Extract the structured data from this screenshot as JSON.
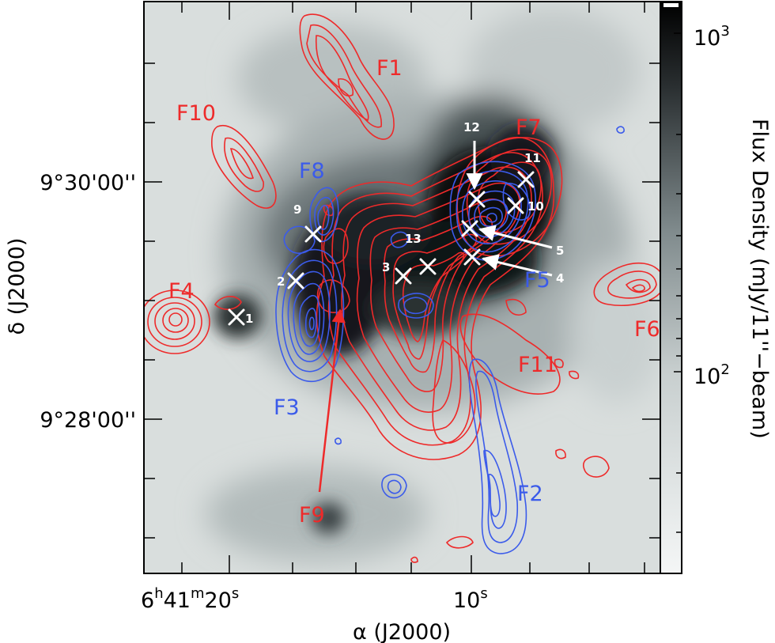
{
  "chart_data": {
    "type": "heatmap",
    "xlabel": "α (J2000)",
    "ylabel": "δ (J2000)",
    "x_ticks": [
      {
        "h": "6",
        "m": "41",
        "s": "20",
        "unit_s": "s"
      },
      {
        "value": "10",
        "unit_s": "s"
      }
    ],
    "y_ticks": [
      "9°30'00''",
      "9°28'00''"
    ],
    "colorbar": {
      "label": "Flux Density (mJy/11''−beam)",
      "scale": "log",
      "colormap": "white-to-black",
      "ticks": [
        {
          "base": "10",
          "exp": "3"
        },
        {
          "base": "10",
          "exp": "2"
        }
      ]
    },
    "contours": [
      {
        "color": "#ee2a2a",
        "name": "red"
      },
      {
        "color": "#3b5bea",
        "name": "blue"
      }
    ],
    "features": [
      {
        "name": "F1",
        "color": "#ee2a2a"
      },
      {
        "name": "F10",
        "color": "#ee2a2a"
      },
      {
        "name": "F8",
        "color": "#3b5bea"
      },
      {
        "name": "F7",
        "color": "#ee2a2a"
      },
      {
        "name": "F4",
        "color": "#ee2a2a"
      },
      {
        "name": "F3",
        "color": "#3b5bea"
      },
      {
        "name": "F5",
        "color": "#3b5bea"
      },
      {
        "name": "F6",
        "color": "#ee2a2a"
      },
      {
        "name": "F11",
        "color": "#ee2a2a"
      },
      {
        "name": "F9",
        "color": "#ee2a2a"
      },
      {
        "name": "F2",
        "color": "#3b5bea"
      }
    ],
    "sources": [
      "1",
      "2",
      "3",
      "4",
      "5",
      "9",
      "10",
      "11",
      "12",
      "13"
    ]
  }
}
